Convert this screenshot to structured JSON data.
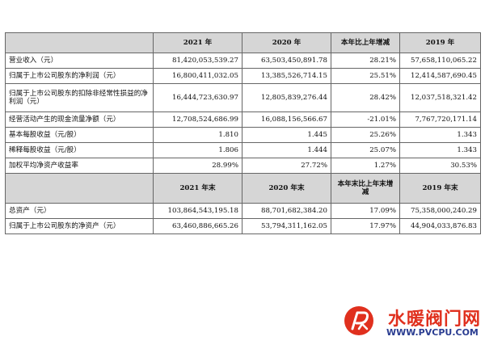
{
  "table": {
    "header_years": [
      "2021 年",
      "2020 年",
      "本年比上年增减",
      "2019 年"
    ],
    "rows": [
      {
        "label": "营业收入（元）",
        "v2021": "81,420,053,539.27",
        "v2020": "63,503,450,891.78",
        "change": "28.21%",
        "v2019": "57,658,110,065.22"
      },
      {
        "label": "归属于上市公司股东的净利润（元）",
        "v2021": "16,800,411,032.05",
        "v2020": "13,385,526,714.15",
        "change": "25.51%",
        "v2019": "12,414,587,690.45"
      },
      {
        "label": "归属于上市公司股东的扣除非经常性损益的净利润（元）",
        "v2021": "16,444,723,630.97",
        "v2020": "12,805,839,276.44",
        "change": "28.42%",
        "v2019": "12,037,518,321.42"
      },
      {
        "label": "经营活动产生的现金流量净额（元）",
        "v2021": "12,708,524,686.99",
        "v2020": "16,088,156,566.67",
        "change": "-21.01%",
        "v2019": "7,767,720,171.14"
      },
      {
        "label": "基本每股收益（元/股）",
        "v2021": "1.810",
        "v2020": "1.445",
        "change": "25.26%",
        "v2019": "1.343"
      },
      {
        "label": "稀释每股收益（元/股）",
        "v2021": "1.806",
        "v2020": "1.444",
        "change": "25.07%",
        "v2019": "1.343"
      },
      {
        "label": "加权平均净资产收益率",
        "v2021": "28.99%",
        "v2020": "27.72%",
        "change": "1.27%",
        "v2019": "30.53%"
      }
    ],
    "subheader": [
      "2021 年末",
      "2020 年末",
      "本年末比上年末增减",
      "2019 年末"
    ],
    "rows2": [
      {
        "label": "总资产（元）",
        "v2021": "103,864,543,195.18",
        "v2020": "88,701,682,384.20",
        "change": "17.09%",
        "v2019": "75,358,000,240.29"
      },
      {
        "label": "归属于上市公司股东的净资产（元）",
        "v2021": "63,460,886,665.26",
        "v2020": "53,794,311,162.05",
        "change": "17.97%",
        "v2019": "44,904,033,876.83"
      }
    ]
  },
  "watermark": {
    "title": "水暖阀门网",
    "url": "WWW.PVCPU.COM",
    "colors": {
      "red": "#e0301e",
      "blue": "#2a3d91"
    }
  }
}
